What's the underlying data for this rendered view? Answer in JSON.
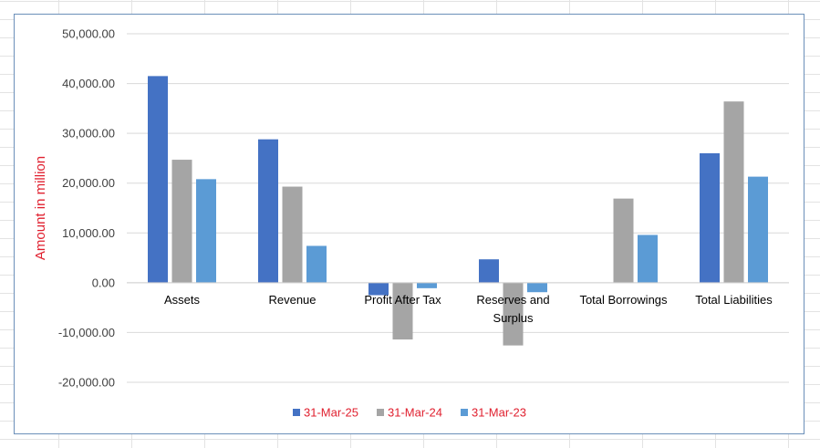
{
  "chart_data": {
    "type": "bar",
    "title": "",
    "xlabel": "",
    "ylabel": "Amount in million",
    "ylim": [
      -20000,
      50000
    ],
    "ytick_step": 10000,
    "ytick_labels": [
      "50,000.00",
      "40,000.00",
      "30,000.00",
      "20,000.00",
      "10,000.00",
      "0.00",
      "-10,000.00",
      "-20,000.00"
    ],
    "grid": true,
    "legend_position": "bottom",
    "categories": [
      [
        "Assets"
      ],
      [
        "Revenue"
      ],
      [
        "Profit After Tax"
      ],
      [
        "Reserves and",
        "Surplus"
      ],
      [
        "Total Borrowings"
      ],
      [
        "Total Liabilities"
      ]
    ],
    "series": [
      {
        "name": "31-Mar-25",
        "color": "#4472c4",
        "values": [
          41500,
          28800,
          -2500,
          4700,
          0,
          26000
        ]
      },
      {
        "name": "31-Mar-24",
        "color": "#a5a5a5",
        "values": [
          24700,
          19300,
          -11400,
          -12600,
          16900,
          36400
        ]
      },
      {
        "name": "31-Mar-23",
        "color": "#5b9bd5",
        "values": [
          20800,
          7400,
          -1100,
          -1900,
          9600,
          21300
        ]
      }
    ],
    "legend_text_color": "#e0202f",
    "ylabel_color": "#e0202f"
  }
}
